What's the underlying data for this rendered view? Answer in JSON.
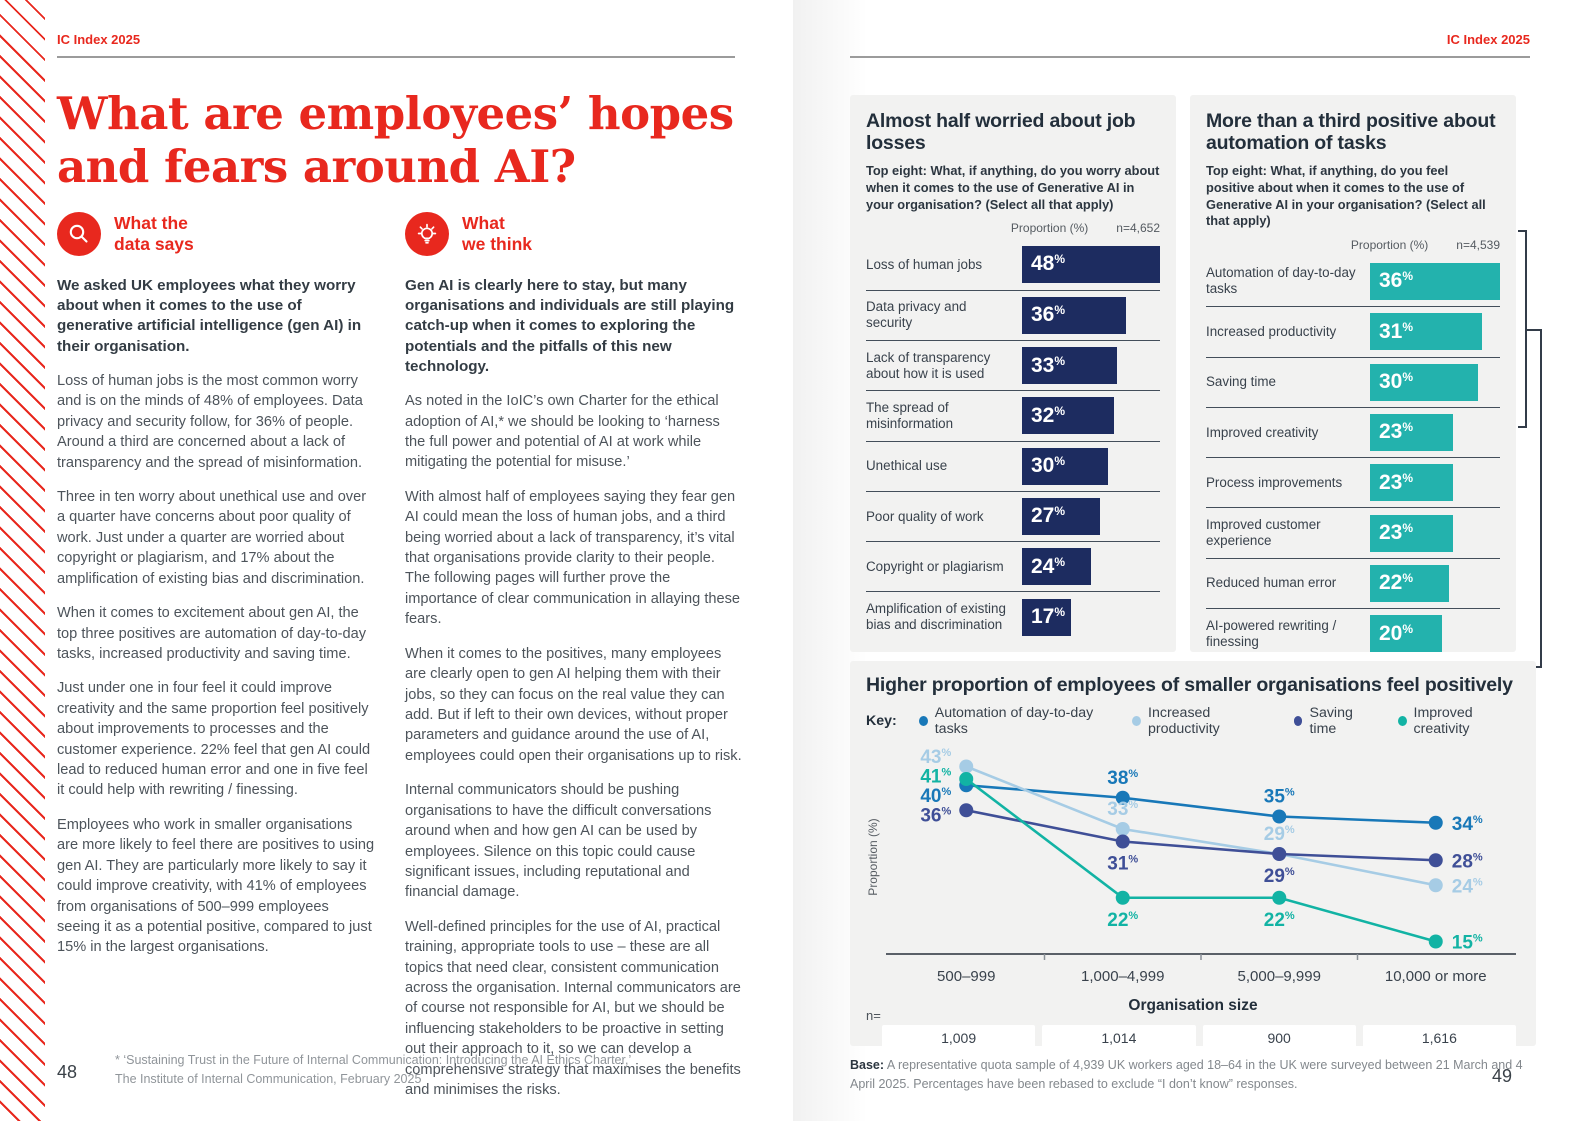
{
  "meta": {
    "header": "IC Index 2025",
    "page_left": "48",
    "page_right": "49"
  },
  "title": "What are employees’ hopes and fears around AI?",
  "columns": {
    "data_says": {
      "heading": [
        "What the",
        "data says"
      ],
      "icon": "magnifier-icon",
      "intro": "We asked UK employees what they worry about when it comes to the use of generative artificial intelligence (gen AI) in their organisation.",
      "paragraphs": [
        "Loss of human jobs is the most common worry and is on the minds of 48% of employees. Data privacy and security follow, for 36% of people. Around a third are concerned about a lack of transparency and the spread of misinformation.",
        "Three in ten worry about unethical use and over a quarter have concerns about poor quality of work. Just under a quarter are worried about copyright or plagiarism, and 17% about the amplification of existing bias and discrimination.",
        "When it comes to excitement about gen AI, the top three positives are automation of day-to-day tasks, increased productivity and saving time.",
        "Just under one in four feel it could improve creativity and the same proportion feel positively about improvements to processes and the customer experience. 22% feel that gen AI could lead to reduced human error and one in five feel it could help with rewriting / finessing.",
        "Employees who work in smaller organisations are more likely to feel there are positives to using gen AI. They are particularly more likely to say it could improve creativity, with 41% of employees from organisations of 500–999 employees seeing it as a potential positive, compared to just 15% in the largest organisations."
      ]
    },
    "we_think": {
      "heading": [
        "What",
        "we think"
      ],
      "icon": "lightbulb-icon",
      "intro": "Gen AI is clearly here to stay, but many organisations and individuals are still playing catch-up when it comes to exploring the potentials and the pitfalls of this new technology.",
      "paragraphs": [
        "As noted in the IoIC’s own Charter for the ethical adoption of AI,* we should be looking to ‘harness the full power and potential of AI at work while mitigating the potential for misuse.’",
        "With almost half of employees saying they fear gen AI could mean the loss of human jobs, and a third being worried about a lack of transparency, it’s vital that organisations provide clarity to their people. The following pages will further prove the importance of clear communication in allaying these fears.",
        "When it comes to the positives, many employees are clearly open to gen AI helping them with their jobs, so they can focus on the real value they can add. But if left to their own devices, without proper parameters and guidance around the use of AI, employees could open their organisations up to risk.",
        "Internal communicators should be pushing organisations to have the difficult conversations around when and how gen AI can be used by employees. Silence on this topic could cause significant issues, including reputational and financial damage.",
        "Well-defined principles for the use of AI, practical training, appropriate tools to use – these are all topics that need clear, consistent communication across the organisation. Internal communicators are of course not responsible for AI, but we should be influencing stakeholders to be proactive in setting out their approach to it, so we can develop a comprehensive strategy that maximises the benefits and minimises the risks."
      ]
    }
  },
  "footnote": {
    "line1": "* ‘Sustaining Trust in the Future of Internal Communication: Introducing the AI Ethics Charter,’",
    "line2": "The Institute of Internal Communication, February 2025"
  },
  "base_note": {
    "label": "Base:",
    "text": " A representative quota sample of 4,939 UK workers aged 18–64 in the UK were surveyed between 21 March and 4 April 2025. Percentages have been rebased to exclude “I don’t know” responses."
  },
  "chart_data": [
    {
      "type": "bar",
      "title": "Almost half worried about job losses",
      "subtitle": "Top eight: What, if anything, do you worry about when it comes to the use of Generative AI in your organisation? (Select all that apply)",
      "axis_label": "Proportion (%)",
      "n_label": "n=4,652",
      "categories": [
        "Loss of human jobs",
        "Data privacy and security",
        "Lack of transparency about how it is used",
        "The spread of misinformation",
        "Unethical use",
        "Poor quality of work",
        "Copyright or plagiarism",
        "Amplification of existing bias and discrimination"
      ],
      "values": [
        48,
        36,
        33,
        32,
        30,
        27,
        24,
        17
      ],
      "bar_color": "#1d2c60",
      "xlim": [
        0,
        48
      ]
    },
    {
      "type": "bar",
      "title": "More than a third positive about automation of tasks",
      "subtitle": "Top eight: What, if anything, do you feel positive about when it comes to the use of Generative AI in your organisation? (Select all that apply)",
      "axis_label": "Proportion (%)",
      "n_label": "n=4,539",
      "categories": [
        "Automation of day-to-day tasks",
        "Increased productivity",
        "Saving time",
        "Improved creativity",
        "Process improvements",
        "Improved customer experience",
        "Reduced human error",
        "AI-powered rewriting / finessing"
      ],
      "values": [
        36,
        31,
        30,
        23,
        23,
        23,
        22,
        20
      ],
      "bar_color": "#23b2ad",
      "xlim": [
        0,
        36
      ]
    },
    {
      "type": "line",
      "title": "Higher proportion of employees of smaller organisations feel positively",
      "key_label": "Key:",
      "xlabel": "Organisation size",
      "ylabel": "Proportion (%)",
      "categories": [
        "500–999",
        "1,000–4,999",
        "5,000–9,999",
        "10,000 or more"
      ],
      "n_label": "n=",
      "n_values": [
        "1,009",
        "1,014",
        "900",
        "1,616"
      ],
      "ylim": [
        13,
        45
      ],
      "series": [
        {
          "name": "Automation of day-to-day tasks",
          "color": "#1878b8",
          "values": [
            40,
            38,
            35,
            34
          ],
          "label_pos": [
            "left",
            "above",
            "above",
            "right"
          ]
        },
        {
          "name": "Increased productivity",
          "color": "#a6cce5",
          "values": [
            43,
            33,
            29,
            24
          ],
          "label_pos": [
            "left",
            "above",
            "above",
            "right"
          ]
        },
        {
          "name": "Saving time",
          "color": "#3f4f97",
          "values": [
            36,
            31,
            29,
            28
          ],
          "label_pos": [
            "left",
            "below",
            "below",
            "right"
          ]
        },
        {
          "name": "Improved creativity",
          "color": "#12b3a4",
          "values": [
            41,
            22,
            22,
            15
          ],
          "label_pos": [
            "left",
            "below",
            "below",
            "right"
          ]
        }
      ]
    }
  ]
}
